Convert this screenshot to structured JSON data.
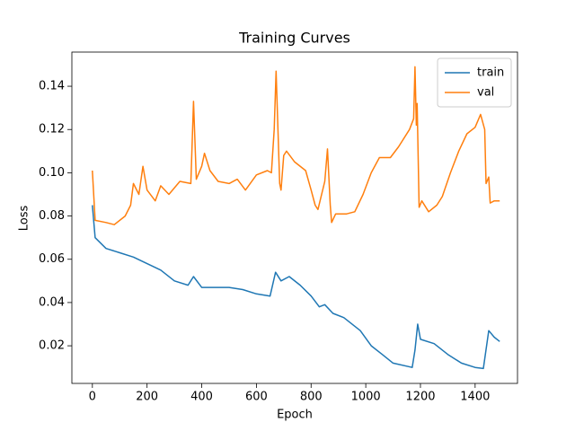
{
  "chart_data": {
    "type": "line",
    "title": "Training Curves",
    "x_label": "Epoch",
    "y_label": "Loss",
    "xlim": [
      -75,
      1555
    ],
    "ylim": [
      0.0026,
      0.1558
    ],
    "xticks": [
      0,
      200,
      400,
      600,
      800,
      1000,
      1200,
      1400
    ],
    "yticks": [
      0.02,
      0.04,
      0.06,
      0.08,
      {
        "value": 0.1,
        "label": "0.10"
      },
      0.12,
      0.14
    ],
    "legend": "upper right",
    "series": [
      {
        "name": "train",
        "color": "#1f77b4",
        "x": [
          0,
          10,
          50,
          100,
          150,
          200,
          250,
          300,
          350,
          370,
          400,
          500,
          550,
          600,
          650,
          670,
          690,
          720,
          760,
          800,
          830,
          850,
          880,
          920,
          980,
          1020,
          1060,
          1100,
          1170,
          1180,
          1190,
          1200,
          1250,
          1300,
          1350,
          1400,
          1430,
          1450,
          1470,
          1490
        ],
        "values": [
          0.085,
          0.07,
          0.065,
          0.063,
          0.061,
          0.058,
          0.055,
          0.05,
          0.048,
          0.052,
          0.047,
          0.047,
          0.046,
          0.044,
          0.043,
          0.054,
          0.05,
          0.052,
          0.048,
          0.043,
          0.038,
          0.039,
          0.035,
          0.033,
          0.027,
          0.02,
          0.016,
          0.012,
          0.01,
          0.018,
          0.03,
          0.023,
          0.021,
          0.016,
          0.012,
          0.01,
          0.0095,
          0.027,
          0.024,
          0.022
        ]
      },
      {
        "name": "val",
        "color": "#ff7f0e",
        "x": [
          0,
          10,
          50,
          80,
          120,
          140,
          150,
          170,
          185,
          200,
          230,
          250,
          280,
          320,
          360,
          370,
          380,
          400,
          410,
          430,
          460,
          500,
          530,
          560,
          600,
          640,
          655,
          665,
          672,
          685,
          690,
          700,
          710,
          740,
          780,
          800,
          815,
          825,
          850,
          860,
          870,
          875,
          890,
          930,
          960,
          990,
          1020,
          1050,
          1090,
          1120,
          1160,
          1175,
          1180,
          1185,
          1188,
          1195,
          1205,
          1230,
          1260,
          1280,
          1310,
          1340,
          1370,
          1400,
          1420,
          1435,
          1440,
          1450,
          1455,
          1470,
          1490
        ],
        "values": [
          0.101,
          0.078,
          0.077,
          0.076,
          0.08,
          0.085,
          0.095,
          0.09,
          0.103,
          0.092,
          0.087,
          0.094,
          0.09,
          0.096,
          0.095,
          0.133,
          0.097,
          0.103,
          0.109,
          0.101,
          0.096,
          0.095,
          0.097,
          0.092,
          0.099,
          0.101,
          0.1,
          0.12,
          0.147,
          0.095,
          0.092,
          0.108,
          0.11,
          0.105,
          0.101,
          0.092,
          0.085,
          0.083,
          0.096,
          0.111,
          0.085,
          0.077,
          0.081,
          0.081,
          0.082,
          0.09,
          0.1,
          0.107,
          0.107,
          0.112,
          0.12,
          0.125,
          0.149,
          0.122,
          0.132,
          0.084,
          0.087,
          0.082,
          0.085,
          0.089,
          0.1,
          0.11,
          0.118,
          0.121,
          0.127,
          0.12,
          0.095,
          0.098,
          0.086,
          0.087,
          0.087
        ]
      }
    ]
  }
}
